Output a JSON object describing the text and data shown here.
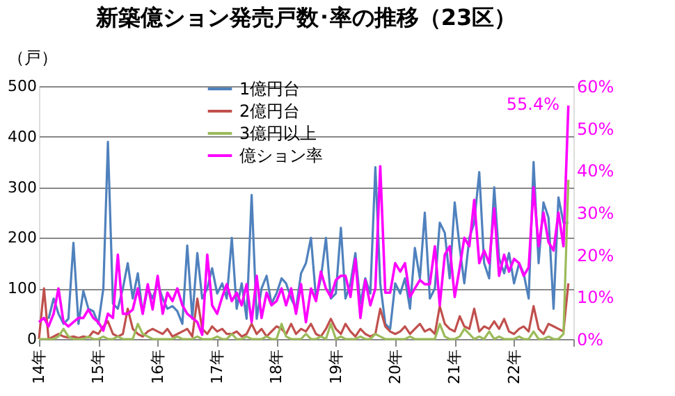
{
  "chart_data": {
    "type": "line",
    "title": "新築億ション発売戸数･率の推移（23区）",
    "ylabel": "（戸）",
    "legend": "top",
    "grid": "y",
    "marker": "none",
    "line_style": "solid",
    "xlim": [
      "2014-01",
      "2023-01"
    ],
    "xticks": [
      {
        "value": "2014-01",
        "label": "14年"
      },
      {
        "value": "2015-01",
        "label": "15年"
      },
      {
        "value": "2016-01",
        "label": "16年"
      },
      {
        "value": "2017-01",
        "label": "17年"
      },
      {
        "value": "2018-01",
        "label": "18年"
      },
      {
        "value": "2019-01",
        "label": "19年"
      },
      {
        "value": "2020-01",
        "label": "20年"
      },
      {
        "value": "2021-01",
        "label": "21年"
      },
      {
        "value": "2022-01",
        "label": "22年"
      },
      {
        "value": "2023-01",
        "label": null
      }
    ],
    "ylim": [
      0,
      500
    ],
    "yticks": [
      0,
      100,
      200,
      300,
      400,
      500
    ],
    "y2lim": [
      0,
      60
    ],
    "y2ticks": [
      {
        "value": 0,
        "label": "0%"
      },
      {
        "value": 10,
        "label": "10%"
      },
      {
        "value": 20,
        "label": "20%"
      },
      {
        "value": 30,
        "label": "30%"
      },
      {
        "value": 40,
        "label": "40%"
      },
      {
        "value": 50,
        "label": "50%"
      },
      {
        "value": 60,
        "label": "60%"
      }
    ],
    "annotations": [
      "55.4%"
    ],
    "x": [
      "2014-01",
      "2014-02",
      "2014-03",
      "2014-04",
      "2014-05",
      "2014-06",
      "2014-07",
      "2014-08",
      "2014-09",
      "2014-10",
      "2014-11",
      "2014-12",
      "2015-01",
      "2015-02",
      "2015-03",
      "2015-04",
      "2015-05",
      "2015-06",
      "2015-07",
      "2015-08",
      "2015-09",
      "2015-10",
      "2015-11",
      "2015-12",
      "2016-01",
      "2016-02",
      "2016-03",
      "2016-04",
      "2016-05",
      "2016-06",
      "2016-07",
      "2016-08",
      "2016-09",
      "2016-10",
      "2016-11",
      "2016-12",
      "2017-01",
      "2017-02",
      "2017-03",
      "2017-04",
      "2017-05",
      "2017-06",
      "2017-07",
      "2017-08",
      "2017-09",
      "2017-10",
      "2017-11",
      "2017-12",
      "2018-01",
      "2018-02",
      "2018-03",
      "2018-04",
      "2018-05",
      "2018-06",
      "2018-07",
      "2018-08",
      "2018-09",
      "2018-10",
      "2018-11",
      "2018-12",
      "2019-01",
      "2019-02",
      "2019-03",
      "2019-04",
      "2019-05",
      "2019-06",
      "2019-07",
      "2019-08",
      "2019-09",
      "2019-10",
      "2019-11",
      "2019-12",
      "2020-01",
      "2020-02",
      "2020-03",
      "2020-04",
      "2020-05",
      "2020-06",
      "2020-07",
      "2020-08",
      "2020-09",
      "2020-10",
      "2020-11",
      "2020-12",
      "2021-01",
      "2021-02",
      "2021-03",
      "2021-04",
      "2021-05",
      "2021-06",
      "2021-07",
      "2021-08",
      "2021-09",
      "2021-10",
      "2021-11",
      "2021-12",
      "2022-01",
      "2022-02",
      "2022-03",
      "2022-04",
      "2022-05",
      "2022-06",
      "2022-07",
      "2022-08",
      "2022-09",
      "2022-10",
      "2022-11",
      "2022-12"
    ],
    "series": [
      {
        "name": "1億円台",
        "color": "#4f81bd",
        "values": [
          null,
          null,
          40,
          80,
          50,
          30,
          40,
          190,
          30,
          95,
          60,
          55,
          30,
          100,
          390,
          70,
          60,
          100,
          150,
          80,
          130,
          50,
          100,
          80,
          110,
          80,
          60,
          65,
          55,
          30,
          185,
          40,
          170,
          80,
          100,
          140,
          90,
          110,
          80,
          200,
          60,
          110,
          40,
          285,
          40,
          100,
          125,
          70,
          90,
          120,
          110,
          80,
          60,
          130,
          150,
          200,
          80,
          120,
          200,
          80,
          90,
          220,
          80,
          110,
          170,
          70,
          120,
          90,
          340,
          110,
          30,
          20,
          110,
          90,
          120,
          60,
          180,
          120,
          250,
          80,
          100,
          230,
          210,
          120,
          270,
          180,
          110,
          200,
          230,
          330,
          150,
          120,
          300,
          160,
          130,
          170,
          110,
          150,
          130,
          80,
          350,
          150,
          270,
          240,
          60,
          280,
          230,
          230
        ]
      },
      {
        "name": "2億円台",
        "color": "#c0504d",
        "values": [
          0,
          100,
          0,
          5,
          10,
          5,
          3,
          5,
          2,
          5,
          3,
          15,
          10,
          25,
          35,
          10,
          5,
          10,
          60,
          20,
          10,
          5,
          15,
          20,
          15,
          10,
          20,
          5,
          10,
          15,
          20,
          5,
          80,
          20,
          10,
          25,
          15,
          20,
          10,
          10,
          15,
          5,
          10,
          30,
          10,
          20,
          5,
          15,
          25,
          20,
          10,
          30,
          10,
          20,
          15,
          30,
          10,
          5,
          20,
          40,
          20,
          10,
          30,
          15,
          5,
          20,
          10,
          5,
          10,
          60,
          25,
          15,
          10,
          15,
          25,
          10,
          20,
          30,
          15,
          20,
          10,
          65,
          30,
          20,
          15,
          45,
          25,
          20,
          60,
          15,
          25,
          20,
          35,
          20,
          40,
          15,
          10,
          20,
          25,
          15,
          65,
          20,
          10,
          30,
          25,
          20,
          15,
          110
        ]
      },
      {
        "name": "3億円以上",
        "color": "#9bbb59",
        "values": [
          0,
          0,
          0,
          0,
          5,
          20,
          5,
          0,
          0,
          0,
          5,
          0,
          0,
          5,
          0,
          0,
          5,
          0,
          0,
          0,
          30,
          10,
          5,
          0,
          0,
          0,
          0,
          0,
          5,
          0,
          0,
          0,
          5,
          0,
          0,
          0,
          5,
          0,
          0,
          10,
          0,
          0,
          5,
          0,
          0,
          0,
          5,
          0,
          0,
          30,
          5,
          0,
          0,
          0,
          10,
          0,
          0,
          5,
          0,
          30,
          0,
          5,
          0,
          0,
          0,
          5,
          0,
          0,
          10,
          5,
          0,
          0,
          0,
          0,
          0,
          5,
          0,
          0,
          0,
          0,
          0,
          30,
          5,
          0,
          0,
          5,
          20,
          10,
          0,
          5,
          0,
          15,
          0,
          5,
          0,
          0,
          0,
          5,
          0,
          0,
          15,
          0,
          0,
          5,
          0,
          0,
          10,
          315
        ]
      },
      {
        "name": "億ション率",
        "color": "#ff00ff",
        "axis": "y2",
        "values": [
          4,
          5,
          3,
          6,
          12,
          4,
          3,
          4,
          5,
          5,
          7,
          5,
          4,
          2,
          6,
          5,
          20,
          6,
          6,
          7,
          12,
          6,
          13,
          7,
          15,
          6,
          11,
          9,
          12,
          8,
          6,
          5,
          4,
          1,
          20,
          8,
          6,
          10,
          13,
          9,
          11,
          8,
          13,
          4,
          15,
          5,
          11,
          8,
          9,
          12,
          8,
          12,
          6,
          13,
          4,
          12,
          9,
          16,
          12,
          10,
          14,
          15,
          15,
          10,
          19,
          5,
          14,
          8,
          12,
          41,
          11,
          11,
          18,
          16,
          18,
          10,
          12,
          14,
          13,
          13,
          22,
          8,
          20,
          22,
          10,
          17,
          24,
          22,
          33,
          18,
          21,
          18,
          31,
          15,
          20,
          16,
          19,
          18,
          15,
          17,
          36,
          22,
          30,
          23,
          21,
          30,
          22,
          55.4
        ]
      }
    ]
  }
}
